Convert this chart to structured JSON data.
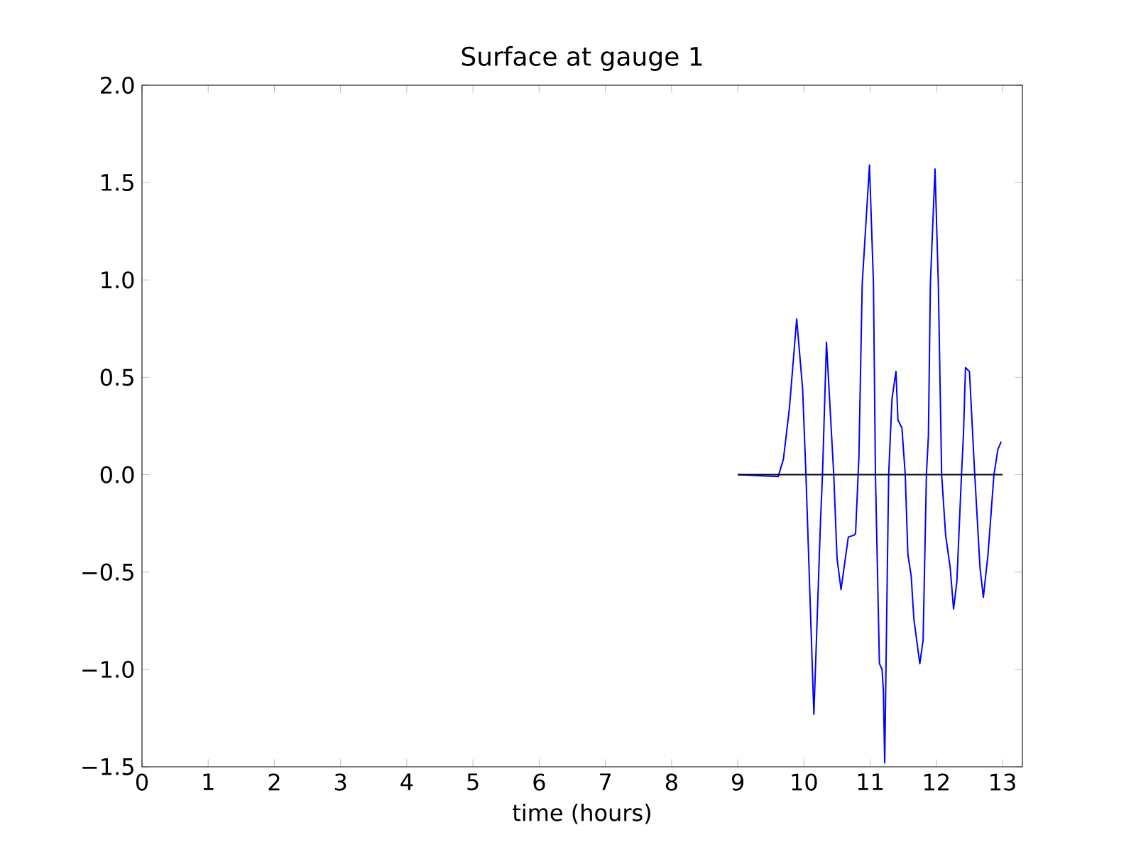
{
  "chart_data": {
    "type": "line",
    "title": "Surface at gauge 1",
    "xlabel": "time (hours)",
    "xlim": [
      0,
      13.3
    ],
    "ylim": [
      -1.5,
      2.0
    ],
    "xticks": [
      0,
      1,
      2,
      3,
      4,
      5,
      6,
      7,
      8,
      9,
      10,
      11,
      12,
      13
    ],
    "yticks": [
      {
        "value": -1.5,
        "label": "−1.5"
      },
      {
        "value": -1.0,
        "label": "−1.0"
      },
      {
        "value": -0.5,
        "label": "−0.5"
      },
      {
        "value": 0.0,
        "label": "0.0"
      },
      {
        "value": 0.5,
        "label": "0.5"
      },
      {
        "value": 1.0,
        "label": "1.0"
      },
      {
        "value": 1.5,
        "label": "1.5"
      },
      {
        "value": 2.0,
        "label": "2.0"
      }
    ],
    "grid": false,
    "line_style": "solid",
    "series": [
      {
        "color": "#0000ff",
        "x": [
          9.0,
          9.61,
          9.69,
          9.78,
          9.89,
          9.98,
          10.03,
          10.15,
          10.25,
          10.28,
          10.34,
          10.45,
          10.5,
          10.56,
          10.67,
          10.76,
          10.78,
          10.83,
          10.88,
          10.99,
          11.05,
          11.08,
          11.14,
          11.18,
          11.2,
          11.22,
          11.25,
          11.28,
          11.33,
          11.39,
          11.42,
          11.48,
          11.53,
          11.57,
          11.62,
          11.66,
          11.75,
          11.8,
          11.85,
          11.88,
          11.91,
          11.98,
          12.03,
          12.08,
          12.14,
          12.21,
          12.26,
          12.31,
          12.38,
          12.41,
          12.44,
          12.5,
          12.58,
          12.66,
          12.71,
          12.78,
          12.87,
          12.93,
          12.98
        ],
        "values": [
          0.0,
          -0.01,
          0.08,
          0.34,
          0.8,
          0.44,
          0.0,
          -1.23,
          -0.24,
          0.0,
          0.68,
          0.0,
          -0.43,
          -0.59,
          -0.32,
          -0.31,
          -0.3,
          0.09,
          0.98,
          1.59,
          0.98,
          0.0,
          -0.97,
          -1.0,
          -1.11,
          -1.48,
          -0.72,
          0.0,
          0.39,
          0.53,
          0.28,
          0.24,
          0.0,
          -0.41,
          -0.52,
          -0.74,
          -0.97,
          -0.85,
          0.0,
          0.2,
          0.98,
          1.57,
          0.98,
          0.0,
          -0.31,
          -0.48,
          -0.69,
          -0.55,
          0.0,
          0.21,
          0.55,
          0.53,
          0.0,
          -0.48,
          -0.63,
          -0.41,
          0.0,
          0.13,
          0.17
        ]
      },
      {
        "color": "#000000",
        "x": [
          9.0,
          13.0
        ],
        "values": [
          0.0,
          0.0
        ]
      }
    ]
  }
}
